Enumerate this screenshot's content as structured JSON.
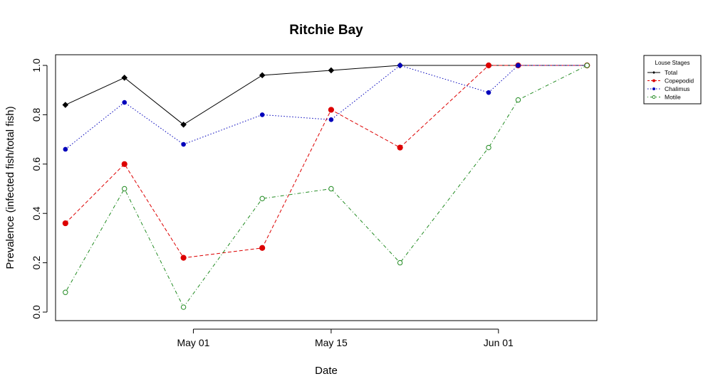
{
  "chart_data": {
    "type": "line",
    "title": "Ritchie Bay",
    "xlabel": "Date",
    "ylabel": "Prevalence (infected fish/total fish)",
    "ylim": [
      0,
      1
    ],
    "xlim": [
      "2014-04-17",
      "2014-06-11"
    ],
    "y_ticks": [
      "0.0",
      "0.2",
      "0.4",
      "0.6",
      "0.8",
      "1.0"
    ],
    "x_ticks": [
      {
        "date": "2014-05-01",
        "label": "May 01"
      },
      {
        "date": "2014-05-15",
        "label": "May 15"
      },
      {
        "date": "2014-06-01",
        "label": "Jun 01"
      }
    ],
    "x": [
      "2014-04-18",
      "2014-04-24",
      "2014-04-30",
      "2014-05-08",
      "2014-05-15",
      "2014-05-22",
      "2014-05-31",
      "2014-06-03",
      "2014-06-10"
    ],
    "legend": {
      "title": "Louse Stages",
      "position": "top-right, outside plot"
    },
    "series": [
      {
        "name": "Total",
        "color": "#000000",
        "dash": "solid",
        "marker": "filled-diamond",
        "values": [
          0.84,
          0.95,
          0.76,
          0.96,
          0.98,
          1.0,
          1.0,
          1.0,
          1.0
        ]
      },
      {
        "name": "Copepodid",
        "color": "#dd0000",
        "dash": "dashed",
        "marker": "filled-circle",
        "values": [
          0.36,
          0.6,
          0.22,
          0.26,
          0.82,
          0.667,
          1.0,
          1.0,
          1.0
        ]
      },
      {
        "name": "Chalimus",
        "color": "#0000bb",
        "dash": "dotted",
        "marker": "filled-circle-small",
        "values": [
          0.66,
          0.85,
          0.68,
          0.8,
          0.78,
          1.0,
          0.89,
          1.0,
          1.0
        ]
      },
      {
        "name": "Motile",
        "color": "#228b22",
        "dash": "dotdash",
        "marker": "open-circle",
        "values": [
          0.08,
          0.5,
          0.02,
          0.46,
          0.5,
          0.2,
          0.667,
          0.86,
          1.0
        ]
      }
    ]
  }
}
